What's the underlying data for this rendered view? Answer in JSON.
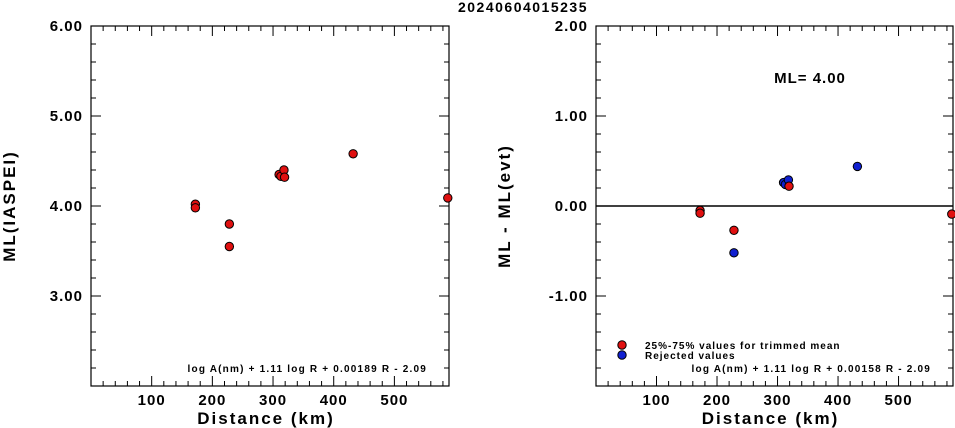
{
  "title": "20240604015235",
  "chart_data": [
    {
      "type": "scatter",
      "xlabel": "Distance (km)",
      "ylabel": "ML(IASPEI)",
      "xlim": [
        0,
        590
      ],
      "ylim": [
        2.0,
        6.0
      ],
      "x_ticks": [
        "100",
        "200",
        "300",
        "400",
        "500"
      ],
      "y_ticks": [
        "3.00",
        "4.00",
        "5.00",
        "6.00"
      ],
      "formula": "log A(nm) + 1.11 log R + 0.00189 R - 2.09",
      "points": [
        {
          "x": 172,
          "y": 4.02,
          "color": "#e01010"
        },
        {
          "x": 172,
          "y": 3.98,
          "color": "#e01010"
        },
        {
          "x": 228,
          "y": 3.8,
          "color": "#e01010"
        },
        {
          "x": 228,
          "y": 3.55,
          "color": "#e01010"
        },
        {
          "x": 310,
          "y": 4.35,
          "color": "#e01010"
        },
        {
          "x": 313,
          "y": 4.33,
          "color": "#e01010"
        },
        {
          "x": 318,
          "y": 4.4,
          "color": "#e01010"
        },
        {
          "x": 319,
          "y": 4.32,
          "color": "#e01010"
        },
        {
          "x": 432,
          "y": 4.58,
          "color": "#e01010"
        },
        {
          "x": 588,
          "y": 4.09,
          "color": "#e01010"
        }
      ]
    },
    {
      "type": "scatter",
      "xlabel": "Distance (km)",
      "ylabel": "ML - ML(evt)",
      "xlim": [
        0,
        590
      ],
      "ylim": [
        -2.0,
        2.0
      ],
      "x_ticks": [
        "100",
        "200",
        "300",
        "400",
        "500"
      ],
      "y_ticks": [
        "-1.00",
        "0.00",
        "1.00",
        "2.00"
      ],
      "reference_line": 0.0,
      "ml_label": "ML= 4.00",
      "formula": "log A(nm) + 1.11 log R + 0.00158 R - 2.09",
      "legend": [
        {
          "label": "25%-75% values for trimmed mean",
          "color": "#e01010"
        },
        {
          "label": "Rejected values",
          "color": "#1020d0"
        }
      ],
      "points": [
        {
          "x": 172,
          "y": -0.05,
          "color": "#e01010"
        },
        {
          "x": 172,
          "y": -0.08,
          "color": "#e01010"
        },
        {
          "x": 228,
          "y": -0.27,
          "color": "#e01010"
        },
        {
          "x": 228,
          "y": -0.52,
          "color": "#1020d0"
        },
        {
          "x": 310,
          "y": 0.26,
          "color": "#1020d0"
        },
        {
          "x": 313,
          "y": 0.24,
          "color": "#1020d0"
        },
        {
          "x": 318,
          "y": 0.29,
          "color": "#1020d0"
        },
        {
          "x": 319,
          "y": 0.22,
          "color": "#e01010"
        },
        {
          "x": 432,
          "y": 0.44,
          "color": "#1020d0"
        },
        {
          "x": 588,
          "y": -0.09,
          "color": "#e01010"
        }
      ]
    }
  ]
}
